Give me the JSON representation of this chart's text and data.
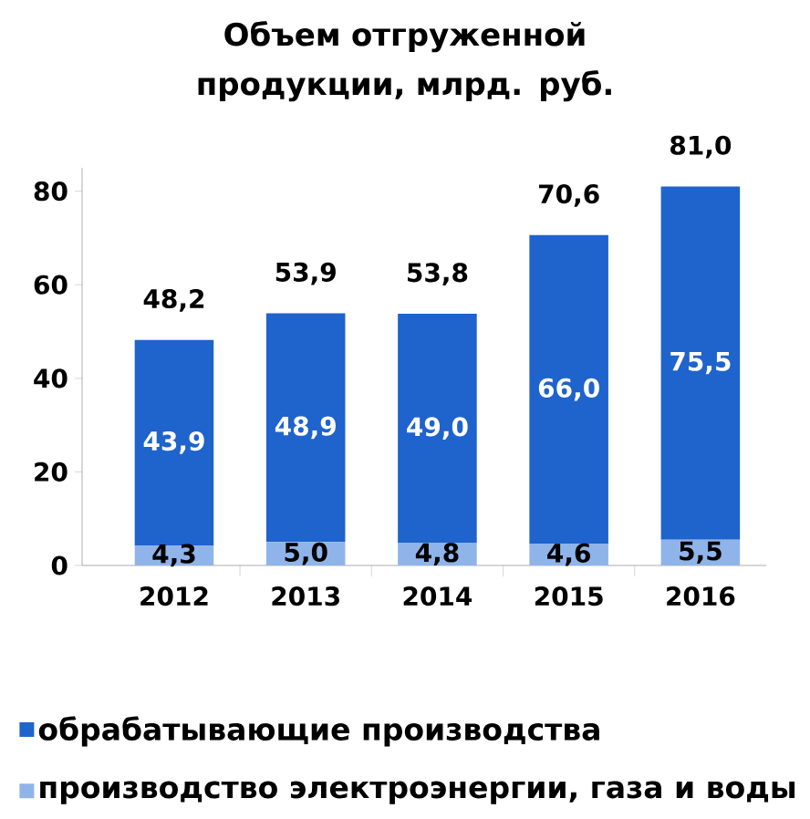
{
  "chart_data": {
    "type": "bar",
    "title": "Объем отгруженной продукции, млрд. руб.",
    "categories": [
      "2012",
      "2013",
      "2014",
      "2015",
      "2016"
    ],
    "stacked": true,
    "series": [
      {
        "name": "производство электроэнергии, газа и воды",
        "color": "#8fb4ea",
        "values": [
          4.3,
          5.0,
          4.8,
          4.6,
          5.5
        ],
        "value_labels": [
          "4,3",
          "5,0",
          "4,8",
          "4,6",
          "5,5"
        ]
      },
      {
        "name": "обрабатывающие производства",
        "color": "#1f63cc",
        "values": [
          43.9,
          48.9,
          49.0,
          66.0,
          75.5
        ],
        "value_labels": [
          "43,9",
          "48,9",
          "49,0",
          "66,0",
          "75,5"
        ]
      }
    ],
    "totals": [
      "48,2",
      "53,9",
      "53,8",
      "70,6",
      "81,0"
    ],
    "ylim": [
      0,
      85
    ],
    "yticks": [
      0,
      20,
      40,
      60,
      80
    ],
    "legend": "bottom"
  }
}
